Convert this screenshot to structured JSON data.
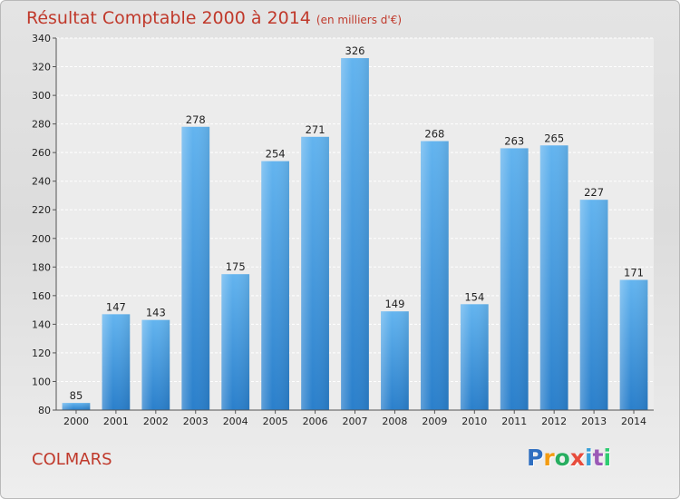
{
  "title": "Résultat Comptable 2000 à 2014",
  "subtitle": "(en milliers d'€)",
  "place": "COLMARS",
  "logo": {
    "letters": [
      "P",
      "r",
      "o",
      "x",
      "i",
      "t",
      "i"
    ],
    "colors": [
      "#2f6fc1",
      "#f39c12",
      "#27ae60",
      "#e74c3c",
      "#3aa0d8",
      "#9b59b6",
      "#2ecc71"
    ]
  },
  "chart_data": {
    "type": "bar",
    "categories": [
      "2000",
      "2001",
      "2002",
      "2003",
      "2004",
      "2005",
      "2006",
      "2007",
      "2008",
      "2009",
      "2010",
      "2011",
      "2012",
      "2013",
      "2014"
    ],
    "values": [
      85,
      147,
      143,
      278,
      175,
      254,
      271,
      326,
      149,
      268,
      154,
      263,
      265,
      227,
      171
    ],
    "ylim": [
      80,
      340
    ],
    "yticks": [
      80,
      100,
      120,
      140,
      160,
      180,
      200,
      220,
      240,
      260,
      280,
      300,
      320,
      340
    ],
    "grid": true,
    "bar_color": "#4a9ee6"
  }
}
